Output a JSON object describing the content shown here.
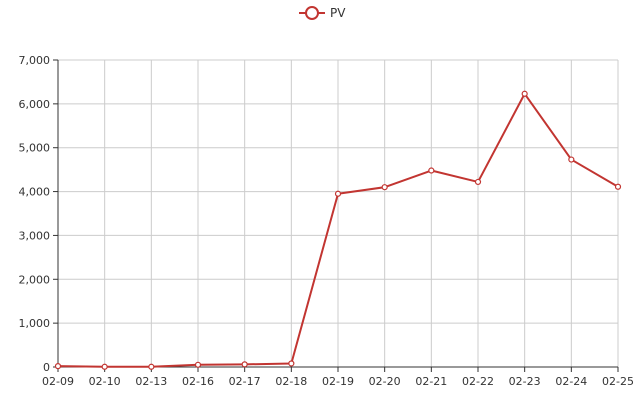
{
  "chart_data": {
    "type": "line",
    "x": [
      "02-09",
      "02-10",
      "02-13",
      "02-16",
      "02-17",
      "02-18",
      "02-19",
      "02-20",
      "02-21",
      "02-22",
      "02-23",
      "02-24",
      "02-25"
    ],
    "series": [
      {
        "name": "PV",
        "values": [
          20,
          5,
          5,
          50,
          60,
          80,
          3950,
          4100,
          4480,
          4220,
          6230,
          4730,
          4110
        ]
      }
    ],
    "ylim": [
      0,
      7000
    ],
    "yticks": [
      0,
      1000,
      2000,
      3000,
      4000,
      5000,
      6000,
      7000
    ],
    "ytick_labels": [
      "0",
      "1,000",
      "2,000",
      "3,000",
      "4,000",
      "5,000",
      "6,000",
      "7,000"
    ],
    "grid": true,
    "legend": "top-center",
    "colors": {
      "series": "#c23531",
      "grid": "#cccccc",
      "axis": "#333333"
    }
  }
}
